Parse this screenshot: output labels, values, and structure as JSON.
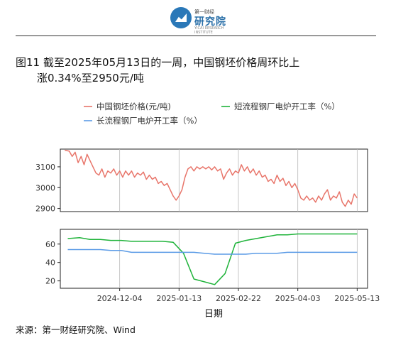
{
  "header": {
    "logo_small": "第一财经",
    "logo_big": "研究院",
    "logo_tiny": "YICAI RESEARCH INSTITUTE"
  },
  "title": {
    "line1": "图11  截至2025年05月13日的一周，中国钢坯价格周环比上",
    "line2": "涨0.34%至2950元/吨"
  },
  "source": "来源：第一财经研究院、Wind",
  "chart_data": {
    "type": "line",
    "xlabel": "日期",
    "x_ticks": [
      "2024-12-04",
      "2025-01-13",
      "2025-02-22",
      "2025-04-03",
      "2025-05-13"
    ],
    "x_range": [
      "2024-10-25",
      "2025-05-20"
    ],
    "legend": [
      "中国钢坯价格(元/吨)",
      "短流程钢厂电炉开工率（%）",
      "长流程钢厂电炉开工率（%）"
    ],
    "colors": {
      "steel": "#e8756a",
      "short": "#1fb33a",
      "long": "#5b9be6"
    },
    "panels": [
      {
        "name": "price",
        "ylim": [
          2885,
          3185
        ],
        "y_ticks": [
          2900,
          3000,
          3100
        ],
        "series": [
          {
            "name": "中国钢坯价格(元/吨)",
            "color_key": "steel",
            "points": [
              [
                "2024-10-28",
                3180
              ],
              [
                "2024-10-31",
                3175
              ],
              [
                "2024-11-02",
                3150
              ],
              [
                "2024-11-04",
                3170
              ],
              [
                "2024-11-06",
                3120
              ],
              [
                "2024-11-08",
                3150
              ],
              [
                "2024-11-10",
                3110
              ],
              [
                "2024-11-12",
                3160
              ],
              [
                "2024-11-14",
                3130
              ],
              [
                "2024-11-16",
                3100
              ],
              [
                "2024-11-18",
                3070
              ],
              [
                "2024-11-20",
                3060
              ],
              [
                "2024-11-22",
                3090
              ],
              [
                "2024-11-24",
                3050
              ],
              [
                "2024-11-26",
                3080
              ],
              [
                "2024-11-28",
                3070
              ],
              [
                "2024-11-30",
                3090
              ],
              [
                "2024-12-02",
                3060
              ],
              [
                "2024-12-04",
                3080
              ],
              [
                "2024-12-06",
                3050
              ],
              [
                "2024-12-08",
                3080
              ],
              [
                "2024-12-10",
                3060
              ],
              [
                "2024-12-12",
                3080
              ],
              [
                "2024-12-14",
                3050
              ],
              [
                "2024-12-16",
                3070
              ],
              [
                "2024-12-18",
                3060
              ],
              [
                "2024-12-20",
                3075
              ],
              [
                "2024-12-22",
                3040
              ],
              [
                "2024-12-24",
                3060
              ],
              [
                "2024-12-26",
                3040
              ],
              [
                "2024-12-28",
                3050
              ],
              [
                "2024-12-30",
                3020
              ],
              [
                "2025-01-01",
                3030
              ],
              [
                "2025-01-03",
                3010
              ],
              [
                "2025-01-05",
                3020
              ],
              [
                "2025-01-07",
                2990
              ],
              [
                "2025-01-09",
                2960
              ],
              [
                "2025-01-11",
                2940
              ],
              [
                "2025-01-13",
                2960
              ],
              [
                "2025-01-15",
                2990
              ],
              [
                "2025-01-17",
                3050
              ],
              [
                "2025-01-19",
                3090
              ],
              [
                "2025-01-21",
                3100
              ],
              [
                "2025-01-23",
                3080
              ],
              [
                "2025-01-25",
                3100
              ],
              [
                "2025-01-27",
                3090
              ],
              [
                "2025-01-29",
                3100
              ],
              [
                "2025-01-31",
                3090
              ],
              [
                "2025-02-02",
                3100
              ],
              [
                "2025-02-04",
                3085
              ],
              [
                "2025-02-06",
                3100
              ],
              [
                "2025-02-08",
                3080
              ],
              [
                "2025-02-10",
                3090
              ],
              [
                "2025-02-12",
                3040
              ],
              [
                "2025-02-14",
                3070
              ],
              [
                "2025-02-16",
                3090
              ],
              [
                "2025-02-18",
                3060
              ],
              [
                "2025-02-20",
                3080
              ],
              [
                "2025-02-22",
                3070
              ],
              [
                "2025-02-24",
                3110
              ],
              [
                "2025-02-26",
                3080
              ],
              [
                "2025-02-28",
                3100
              ],
              [
                "2025-03-02",
                3070
              ],
              [
                "2025-03-04",
                3090
              ],
              [
                "2025-03-06",
                3060
              ],
              [
                "2025-03-08",
                3080
              ],
              [
                "2025-03-10",
                3050
              ],
              [
                "2025-03-12",
                3060
              ],
              [
                "2025-03-14",
                3030
              ],
              [
                "2025-03-16",
                3040
              ],
              [
                "2025-03-18",
                3020
              ],
              [
                "2025-03-20",
                3060
              ],
              [
                "2025-03-22",
                3030
              ],
              [
                "2025-03-24",
                3045
              ],
              [
                "2025-03-26",
                3010
              ],
              [
                "2025-03-28",
                3030
              ],
              [
                "2025-03-30",
                3000
              ],
              [
                "2025-04-01",
                3020
              ],
              [
                "2025-04-03",
                2990
              ],
              [
                "2025-04-05",
                2950
              ],
              [
                "2025-04-07",
                2940
              ],
              [
                "2025-04-09",
                2960
              ],
              [
                "2025-04-11",
                2940
              ],
              [
                "2025-04-13",
                2950
              ],
              [
                "2025-04-15",
                2930
              ],
              [
                "2025-04-17",
                2960
              ],
              [
                "2025-04-19",
                2940
              ],
              [
                "2025-04-21",
                2970
              ],
              [
                "2025-04-23",
                2990
              ],
              [
                "2025-04-25",
                2940
              ],
              [
                "2025-04-27",
                2960
              ],
              [
                "2025-04-29",
                2950
              ],
              [
                "2025-05-01",
                2980
              ],
              [
                "2025-05-03",
                2930
              ],
              [
                "2025-05-05",
                2910
              ],
              [
                "2025-05-07",
                2940
              ],
              [
                "2025-05-09",
                2920
              ],
              [
                "2025-05-11",
                2970
              ],
              [
                "2025-05-13",
                2950
              ]
            ]
          }
        ]
      },
      {
        "name": "rate",
        "ylim": [
          12,
          76
        ],
        "y_ticks": [
          20,
          40,
          60
        ],
        "series": [
          {
            "name": "短流程钢厂电炉开工率（%）",
            "color_key": "short",
            "points": [
              [
                "2024-10-30",
                66
              ],
              [
                "2024-11-07",
                67
              ],
              [
                "2024-11-14",
                65
              ],
              [
                "2024-11-21",
                65
              ],
              [
                "2024-11-28",
                64
              ],
              [
                "2024-12-05",
                64
              ],
              [
                "2024-12-12",
                63
              ],
              [
                "2024-12-19",
                63
              ],
              [
                "2024-12-26",
                63
              ],
              [
                "2025-01-02",
                63
              ],
              [
                "2025-01-09",
                62
              ],
              [
                "2025-01-16",
                50
              ],
              [
                "2025-01-23",
                22
              ],
              [
                "2025-01-30",
                19
              ],
              [
                "2025-02-06",
                16
              ],
              [
                "2025-02-13",
                28
              ],
              [
                "2025-02-20",
                61
              ],
              [
                "2025-02-27",
                64
              ],
              [
                "2025-03-06",
                66
              ],
              [
                "2025-03-13",
                68
              ],
              [
                "2025-03-20",
                70
              ],
              [
                "2025-03-27",
                70
              ],
              [
                "2025-04-03",
                71
              ],
              [
                "2025-04-10",
                71
              ],
              [
                "2025-04-17",
                71
              ],
              [
                "2025-04-24",
                71
              ],
              [
                "2025-05-01",
                71
              ],
              [
                "2025-05-08",
                71
              ],
              [
                "2025-05-13",
                71
              ]
            ]
          },
          {
            "name": "长流程钢厂电炉开工率（%）",
            "color_key": "long",
            "points": [
              [
                "2024-10-30",
                54
              ],
              [
                "2024-11-07",
                54
              ],
              [
                "2024-11-14",
                54
              ],
              [
                "2024-11-21",
                54
              ],
              [
                "2024-11-28",
                53
              ],
              [
                "2024-12-05",
                53
              ],
              [
                "2024-12-12",
                51
              ],
              [
                "2024-12-19",
                51
              ],
              [
                "2024-12-26",
                51
              ],
              [
                "2025-01-02",
                51
              ],
              [
                "2025-01-09",
                51
              ],
              [
                "2025-01-16",
                51
              ],
              [
                "2025-01-23",
                51
              ],
              [
                "2025-01-30",
                50
              ],
              [
                "2025-02-06",
                49
              ],
              [
                "2025-02-13",
                49
              ],
              [
                "2025-02-20",
                49
              ],
              [
                "2025-02-27",
                49
              ],
              [
                "2025-03-06",
                50
              ],
              [
                "2025-03-13",
                50
              ],
              [
                "2025-03-20",
                50
              ],
              [
                "2025-03-27",
                51
              ],
              [
                "2025-04-03",
                51
              ],
              [
                "2025-04-10",
                51
              ],
              [
                "2025-04-17",
                51
              ],
              [
                "2025-04-24",
                51
              ],
              [
                "2025-05-01",
                51
              ],
              [
                "2025-05-08",
                51
              ],
              [
                "2025-05-13",
                51
              ]
            ]
          }
        ]
      }
    ]
  }
}
